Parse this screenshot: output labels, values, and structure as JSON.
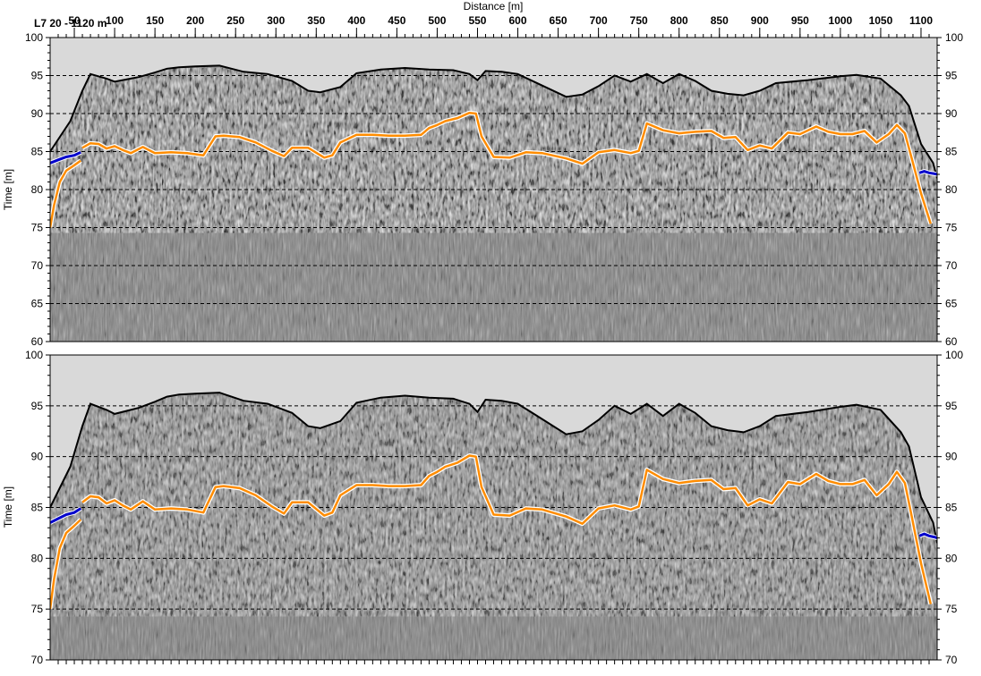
{
  "window": {
    "section_label": "L7 20 - 1120 m"
  },
  "chart_data": [
    {
      "type": "line",
      "panel": "top",
      "title": "",
      "xlabel": "Distance [m]",
      "ylabel": "Time [m]",
      "xlim": [
        20,
        1120
      ],
      "ylim": [
        60,
        100
      ],
      "x_ticks": [
        50,
        100,
        150,
        200,
        250,
        300,
        350,
        400,
        450,
        500,
        550,
        600,
        650,
        700,
        750,
        800,
        850,
        900,
        950,
        1000,
        1050,
        1100
      ],
      "y_ticks": [
        60,
        65,
        70,
        75,
        80,
        85,
        90,
        95,
        100
      ],
      "grid": "horizontal dashed",
      "colors": {
        "surface": "#000000",
        "sky": "#d9d9d9",
        "orange_horizon": "#ff8c00",
        "blue_horizon": "#0000cc",
        "background": "#808080"
      },
      "series": [
        {
          "key": "surface",
          "x": [
            20,
            45,
            60,
            70,
            90,
            100,
            120,
            130,
            150,
            165,
            180,
            200,
            230,
            260,
            290,
            320,
            340,
            355,
            380,
            400,
            430,
            460,
            490,
            520,
            540,
            550,
            560,
            580,
            600,
            620,
            660,
            680,
            700,
            720,
            740,
            760,
            780,
            800,
            820,
            840,
            860,
            880,
            900,
            920,
            960,
            1000,
            1020,
            1050,
            1075,
            1085,
            1100,
            1115,
            1120
          ],
          "values": [
            85,
            89,
            93,
            95.2,
            94.6,
            94.2,
            94.6,
            94.8,
            95.4,
            95.9,
            96.1,
            96.2,
            96.3,
            95.5,
            95.2,
            94.3,
            93,
            92.8,
            93.5,
            95.3,
            95.8,
            96,
            95.8,
            95.7,
            95.2,
            94.4,
            95.6,
            95.5,
            95.2,
            94.2,
            92.2,
            92.5,
            93.6,
            95,
            94.2,
            95.2,
            94,
            95.2,
            94.3,
            93,
            92.6,
            92.4,
            93,
            94,
            94.4,
            94.9,
            95.1,
            94.6,
            92.4,
            91,
            86,
            83.5,
            81.5
          ]
        },
        {
          "key": "orange_horizon",
          "x": [
            60,
            70,
            80,
            90,
            100,
            110,
            120,
            135,
            150,
            170,
            190,
            210,
            225,
            235,
            255,
            275,
            295,
            310,
            320,
            340,
            360,
            370,
            380,
            400,
            420,
            440,
            460,
            480,
            490,
            500,
            510,
            525,
            540,
            548,
            555,
            570,
            590,
            610,
            630,
            660,
            680,
            700,
            720,
            740,
            750,
            760,
            780,
            800,
            820,
            840,
            855,
            870,
            885,
            900,
            915,
            935,
            950,
            970,
            985,
            1000,
            1015,
            1030,
            1045,
            1060,
            1070,
            1080,
            1090,
            1100,
            1112
          ],
          "values": [
            85.5,
            86.1,
            86,
            85.4,
            85.7,
            85.2,
            84.8,
            85.6,
            84.8,
            84.9,
            84.8,
            84.5,
            87,
            87.1,
            86.9,
            86.2,
            85.1,
            84.4,
            85.5,
            85.5,
            84.2,
            84.5,
            86.2,
            87.2,
            87.2,
            87.1,
            87.1,
            87.2,
            88.1,
            88.5,
            89,
            89.4,
            90.1,
            90,
            87,
            84.3,
            84.2,
            84.9,
            84.8,
            84.1,
            83.4,
            84.9,
            85.2,
            84.8,
            85.1,
            88.7,
            87.8,
            87.4,
            87.6,
            87.7,
            86.8,
            86.9,
            85.2,
            85.8,
            85.4,
            87.5,
            87.3,
            88.3,
            87.6,
            87.3,
            87.3,
            87.7,
            86.2,
            87.3,
            88.5,
            87.4,
            83.5,
            79.5,
            75.5
          ]
        },
        {
          "key": "orange_left_ramp",
          "x": [
            20,
            25,
            32,
            40,
            50,
            58
          ],
          "values": [
            75,
            78,
            81,
            82.5,
            83.2,
            83.8
          ]
        },
        {
          "key": "blue_left",
          "x": [
            20,
            30,
            40,
            50,
            58
          ],
          "values": [
            83.5,
            83.9,
            84.3,
            84.5,
            84.9
          ]
        },
        {
          "key": "blue_right",
          "x": [
            1098,
            1104,
            1110,
            1116,
            1120
          ],
          "values": [
            82.2,
            82.4,
            82.2,
            82.1,
            82.0
          ]
        }
      ]
    },
    {
      "type": "line",
      "panel": "bottom",
      "title": "",
      "xlabel": "",
      "ylabel": "Time [m]",
      "xlim": [
        20,
        1120
      ],
      "ylim": [
        70,
        100
      ],
      "y_ticks": [
        70,
        75,
        80,
        85,
        90,
        95,
        100
      ],
      "grid": "horizontal dashed",
      "series": [
        {
          "key": "surface",
          "x": [
            20,
            45,
            60,
            70,
            90,
            100,
            120,
            130,
            150,
            165,
            180,
            200,
            230,
            260,
            290,
            320,
            340,
            355,
            380,
            400,
            430,
            460,
            490,
            520,
            540,
            550,
            560,
            580,
            600,
            620,
            660,
            680,
            700,
            720,
            740,
            760,
            780,
            800,
            820,
            840,
            860,
            880,
            900,
            920,
            960,
            1000,
            1020,
            1050,
            1075,
            1085,
            1100,
            1115,
            1120
          ],
          "values": [
            85,
            89,
            93,
            95.2,
            94.6,
            94.2,
            94.6,
            94.8,
            95.4,
            95.9,
            96.1,
            96.2,
            96.3,
            95.5,
            95.2,
            94.3,
            93,
            92.8,
            93.5,
            95.3,
            95.8,
            96,
            95.8,
            95.7,
            95.2,
            94.4,
            95.6,
            95.5,
            95.2,
            94.2,
            92.2,
            92.5,
            93.6,
            95,
            94.2,
            95.2,
            94,
            95.2,
            94.3,
            93,
            92.6,
            92.4,
            93,
            94,
            94.4,
            94.9,
            95.1,
            94.6,
            92.4,
            91,
            86,
            83.5,
            81.5
          ]
        },
        {
          "key": "orange_horizon",
          "x": [
            60,
            70,
            80,
            90,
            100,
            110,
            120,
            135,
            150,
            170,
            190,
            210,
            225,
            235,
            255,
            275,
            295,
            310,
            320,
            340,
            360,
            370,
            380,
            400,
            420,
            440,
            460,
            480,
            490,
            500,
            510,
            525,
            540,
            548,
            555,
            570,
            590,
            610,
            630,
            660,
            680,
            700,
            720,
            740,
            750,
            760,
            780,
            800,
            820,
            840,
            855,
            870,
            885,
            900,
            915,
            935,
            950,
            970,
            985,
            1000,
            1015,
            1030,
            1045,
            1060,
            1070,
            1080,
            1090,
            1100,
            1112
          ],
          "values": [
            85.5,
            86.1,
            86,
            85.4,
            85.7,
            85.2,
            84.8,
            85.6,
            84.8,
            84.9,
            84.8,
            84.5,
            87,
            87.1,
            86.9,
            86.2,
            85.1,
            84.4,
            85.5,
            85.5,
            84.2,
            84.5,
            86.2,
            87.2,
            87.2,
            87.1,
            87.1,
            87.2,
            88.1,
            88.5,
            89,
            89.4,
            90.1,
            90,
            87,
            84.3,
            84.2,
            84.9,
            84.8,
            84.1,
            83.4,
            84.9,
            85.2,
            84.8,
            85.1,
            88.7,
            87.8,
            87.4,
            87.6,
            87.7,
            86.8,
            86.9,
            85.2,
            85.8,
            85.4,
            87.5,
            87.3,
            88.3,
            87.6,
            87.3,
            87.3,
            87.7,
            86.2,
            87.3,
            88.5,
            87.4,
            83.5,
            79.5,
            75.5
          ]
        },
        {
          "key": "orange_left_ramp",
          "x": [
            20,
            25,
            32,
            40,
            50,
            58
          ],
          "values": [
            75,
            78,
            81,
            82.5,
            83.2,
            83.8
          ]
        },
        {
          "key": "blue_left",
          "x": [
            20,
            30,
            40,
            50,
            58
          ],
          "values": [
            83.5,
            83.9,
            84.3,
            84.5,
            84.9
          ]
        },
        {
          "key": "blue_right",
          "x": [
            1098,
            1104,
            1110,
            1116,
            1120
          ],
          "values": [
            82.2,
            82.4,
            82.2,
            82.1,
            82.0
          ]
        }
      ]
    }
  ]
}
